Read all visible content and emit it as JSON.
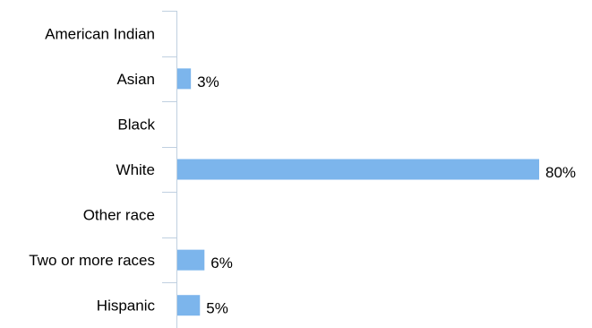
{
  "colors": {
    "bar": "#7cb5ec",
    "axis": "#c0d0e0",
    "text": "#000000"
  },
  "chart_data": {
    "type": "bar",
    "orientation": "horizontal",
    "categories": [
      "American Indian",
      "Asian",
      "Black",
      "White",
      "Other race",
      "Two or more races",
      "Hispanic"
    ],
    "values": [
      0,
      3,
      0,
      80,
      0,
      6,
      5
    ],
    "value_labels": [
      "",
      "3%",
      "",
      "80%",
      "",
      "6%",
      "5%"
    ],
    "title": "",
    "xlabel": "",
    "ylabel": "",
    "xlim": [
      0,
      80
    ],
    "grid": false,
    "legend": false
  }
}
